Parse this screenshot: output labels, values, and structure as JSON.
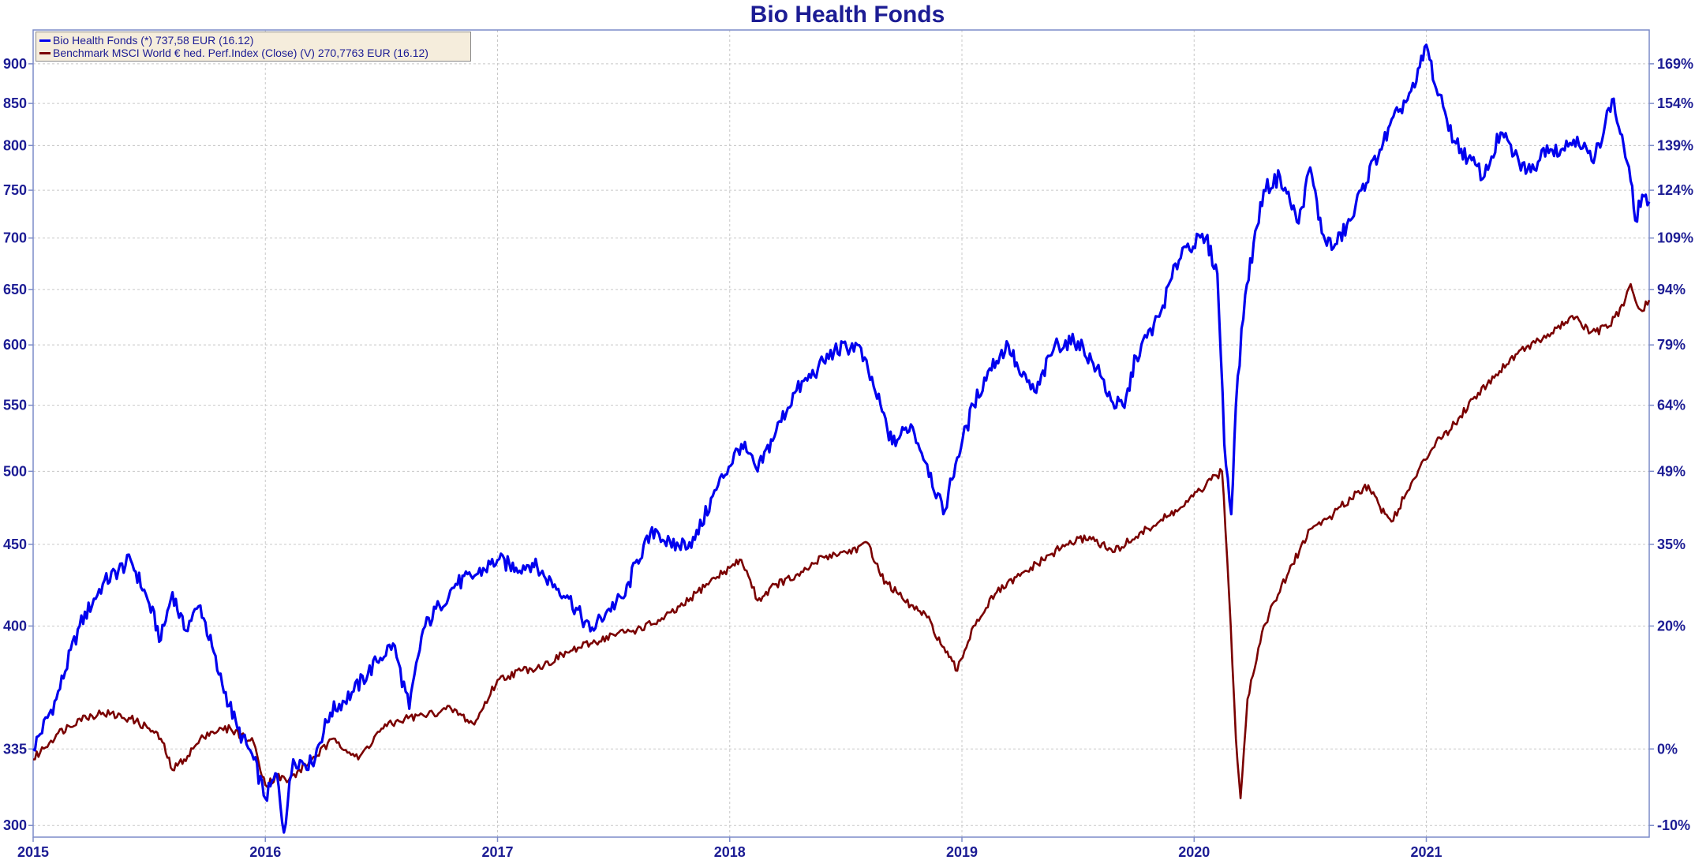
{
  "chart_data": {
    "type": "line",
    "title": "Bio Health Fonds",
    "legend": [
      {
        "label": "Bio Health Fonds (*) 737,58 EUR (16.12)",
        "color": "#0000ee"
      },
      {
        "label": "Benchmark MSCI World € hed. Perf.Index (Close) (V) 270,7763 EUR (16.12)",
        "color": "#7a0000"
      }
    ],
    "legend_position": "top-left",
    "grid": true,
    "x_ticks": [
      "2015",
      "2016",
      "2017",
      "2018",
      "2019",
      "2020",
      "2021"
    ],
    "x_range": [
      2015.0,
      2021.96
    ],
    "y_left": {
      "scale": "log",
      "ticks": [
        300,
        335,
        400,
        450,
        500,
        550,
        600,
        650,
        700,
        750,
        800,
        850,
        900
      ],
      "range": [
        295,
        945
      ]
    },
    "y_right": {
      "ticks": [
        "-10%",
        "0%",
        "20%",
        "35%",
        "49%",
        "64%",
        "79%",
        "94%",
        "109%",
        "124%",
        "139%",
        "154%",
        "169%"
      ]
    },
    "series": [
      {
        "name": "Bio Health Fonds",
        "color": "#0000ee",
        "x": [
          2015.0,
          2015.1,
          2015.2,
          2015.3,
          2015.42,
          2015.5,
          2015.55,
          2015.6,
          2015.65,
          2015.72,
          2015.8,
          2015.88,
          2015.95,
          2016.0,
          2016.05,
          2016.08,
          2016.12,
          2016.2,
          2016.28,
          2016.38,
          2016.48,
          2016.55,
          2016.62,
          2016.68,
          2016.75,
          2016.82,
          2016.9,
          2017.0,
          2017.08,
          2017.15,
          2017.2,
          2017.3,
          2017.4,
          2017.48,
          2017.55,
          2017.6,
          2017.68,
          2017.75,
          2017.85,
          2017.95,
          2018.05,
          2018.12,
          2018.2,
          2018.28,
          2018.38,
          2018.45,
          2018.55,
          2018.62,
          2018.7,
          2018.78,
          2018.85,
          2018.92,
          2018.98,
          2019.05,
          2019.12,
          2019.2,
          2019.25,
          2019.32,
          2019.4,
          2019.5,
          2019.58,
          2019.65,
          2019.7,
          2019.75,
          2019.85,
          2019.95,
          2020.05,
          2020.1,
          2020.13,
          2020.16,
          2020.18,
          2020.22,
          2020.3,
          2020.37,
          2020.45,
          2020.5,
          2020.55,
          2020.6,
          2020.68,
          2020.72,
          2020.8,
          2020.88,
          2020.95,
          2021.0,
          2021.05,
          2021.08,
          2021.12,
          2021.18,
          2021.25,
          2021.32,
          2021.4,
          2021.45,
          2021.52,
          2021.58,
          2021.65,
          2021.72,
          2021.8,
          2021.85,
          2021.88,
          2021.9,
          2021.93,
          2021.96
        ],
        "values": [
          335,
          360,
          400,
          425,
          440,
          413,
          392,
          420,
          398,
          412,
          373,
          345,
          330,
          312,
          323,
          297,
          330,
          328,
          353,
          364,
          380,
          390,
          355,
          398,
          412,
          425,
          430,
          440,
          435,
          438,
          430,
          418,
          397,
          410,
          418,
          440,
          460,
          448,
          453,
          490,
          520,
          500,
          530,
          560,
          580,
          595,
          600,
          565,
          520,
          535,
          505,
          470,
          510,
          550,
          580,
          600,
          575,
          560,
          600,
          603,
          580,
          552,
          548,
          590,
          625,
          690,
          700,
          665,
          520,
          470,
          550,
          645,
          750,
          765,
          715,
          775,
          705,
          690,
          720,
          750,
          795,
          840,
          870,
          925,
          860,
          840,
          805,
          785,
          765,
          815,
          780,
          770,
          800,
          795,
          810,
          780,
          855,
          800,
          760,
          718,
          745,
          737.58
        ]
      },
      {
        "name": "Benchmark MSCI World € hed. Perf.Index (Close)",
        "color": "#7a0000",
        "x": [
          2015.0,
          2015.1,
          2015.2,
          2015.3,
          2015.42,
          2015.5,
          2015.55,
          2015.6,
          2015.65,
          2015.75,
          2015.85,
          2015.95,
          2016.0,
          2016.05,
          2016.1,
          2016.2,
          2016.3,
          2016.4,
          2016.5,
          2016.6,
          2016.7,
          2016.8,
          2016.9,
          2017.0,
          2017.1,
          2017.2,
          2017.3,
          2017.4,
          2017.5,
          2017.6,
          2017.7,
          2017.8,
          2017.9,
          2018.0,
          2018.05,
          2018.08,
          2018.12,
          2018.2,
          2018.3,
          2018.4,
          2018.5,
          2018.6,
          2018.65,
          2018.75,
          2018.85,
          2018.93,
          2018.98,
          2019.05,
          2019.15,
          2019.25,
          2019.35,
          2019.45,
          2019.55,
          2019.65,
          2019.75,
          2019.85,
          2019.95,
          2020.05,
          2020.12,
          2020.15,
          2020.18,
          2020.2,
          2020.23,
          2020.3,
          2020.4,
          2020.5,
          2020.6,
          2020.7,
          2020.75,
          2020.8,
          2020.85,
          2020.95,
          2021.05,
          2021.1,
          2021.2,
          2021.3,
          2021.4,
          2021.5,
          2021.6,
          2021.65,
          2021.7,
          2021.78,
          2021.85,
          2021.88,
          2021.9,
          2021.93,
          2021.96
        ],
        "values": [
          330,
          342,
          350,
          353,
          350,
          345,
          340,
          325,
          330,
          343,
          345,
          338,
          318,
          322,
          320,
          330,
          340,
          330,
          345,
          350,
          352,
          355,
          347,
          370,
          375,
          378,
          385,
          390,
          395,
          398,
          403,
          412,
          425,
          435,
          440,
          430,
          415,
          425,
          430,
          442,
          445,
          450,
          430,
          415,
          405,
          385,
          375,
          400,
          420,
          430,
          440,
          450,
          455,
          445,
          455,
          465,
          475,
          490,
          500,
          420,
          340,
          312,
          360,
          400,
          430,
          460,
          470,
          485,
          490,
          475,
          465,
          495,
          525,
          530,
          555,
          575,
          595,
          605,
          620,
          625,
          610,
          615,
          635,
          655,
          640,
          630,
          640
        ]
      }
    ]
  }
}
